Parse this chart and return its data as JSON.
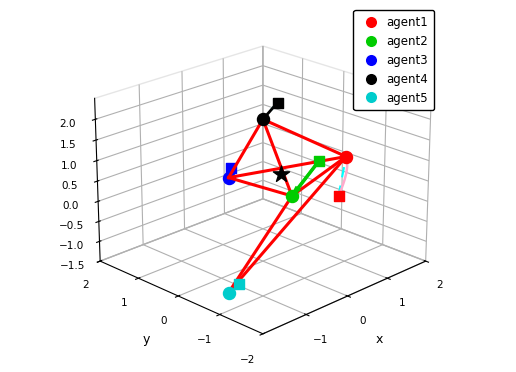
{
  "agents": {
    "agent1": {
      "final": [
        1.0,
        -1.0,
        1.1
      ],
      "init": [
        0.5,
        -1.3,
        0.45
      ],
      "color": "#ff0000"
    },
    "agent2": {
      "final": [
        0.2,
        -0.5,
        0.25
      ],
      "init": [
        0.85,
        -0.5,
        0.85
      ],
      "color": "#00cc00"
    },
    "agent3": {
      "final": [
        0.15,
        1.0,
        0.15
      ],
      "init": [
        0.3,
        1.1,
        0.3
      ],
      "color": "#0000ff"
    },
    "agent4": {
      "final": [
        0.0,
        0.0,
        2.0
      ],
      "init": [
        0.25,
        -0.1,
        2.35
      ],
      "color": "#000000"
    },
    "agent5": {
      "final": [
        -1.7,
        -0.9,
        -1.15
      ],
      "init": [
        -1.4,
        -0.85,
        -1.1
      ],
      "color": "#00cccc"
    }
  },
  "red_edges_agents": [
    [
      "agent1",
      "agent4"
    ],
    [
      "agent1",
      "agent3"
    ],
    [
      "agent1",
      "agent2"
    ],
    [
      "agent4",
      "agent3"
    ],
    [
      "agent4",
      "agent2"
    ],
    [
      "agent3",
      "agent2"
    ],
    [
      "agent2",
      "agent5"
    ],
    [
      "agent1",
      "agent5"
    ]
  ],
  "black_edge_agents": [
    "agent4_init",
    "agent4"
  ],
  "pink_edge_agents": [
    "agent1",
    "agent1_init"
  ],
  "green_arrow_agent": "agent2",
  "cyan_arrow_agents": [
    "agent1",
    "agent3",
    "agent4",
    "agent5"
  ],
  "black_star": [
    0.45,
    0.0,
    0.5
  ],
  "legend_labels": [
    "agent1",
    "agent2",
    "agent3",
    "agent4",
    "agent5"
  ],
  "legend_colors": [
    "#ff0000",
    "#00cc00",
    "#0000ff",
    "#000000",
    "#00cccc"
  ],
  "xlabel": "x",
  "ylabel": "y",
  "zlabel": "",
  "xlim": [
    -2,
    2
  ],
  "ylim": [
    -2,
    2
  ],
  "zlim": [
    -1.5,
    2.5
  ],
  "zticks": [
    -1.5,
    -1.0,
    -0.5,
    0.0,
    0.5,
    1.0,
    1.5,
    2.0
  ],
  "yticks": [
    -2,
    -1,
    0,
    1,
    2
  ],
  "xticks": [
    -1,
    0,
    1,
    2
  ],
  "elev": 22,
  "azim": -135
}
